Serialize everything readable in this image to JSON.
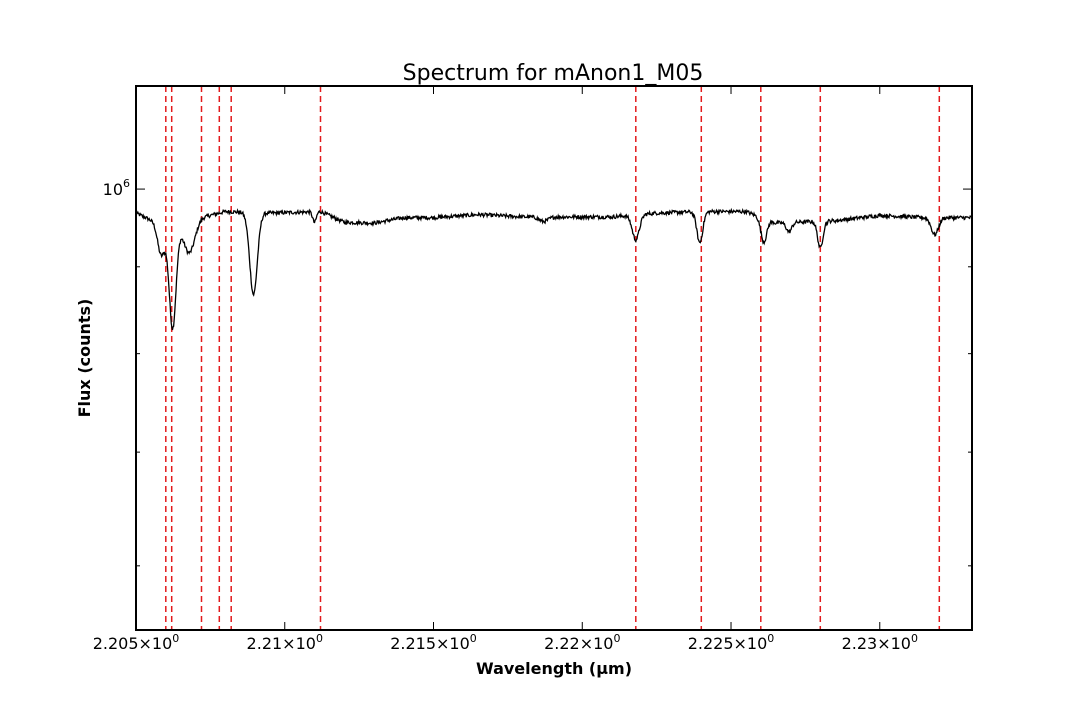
{
  "chart_data": {
    "type": "line",
    "title": "Spectrum for mAnon1_M05",
    "xlabel": "Wavelength (μm)",
    "ylabel": "Flux (counts)",
    "xlim": [
      2.205,
      2.2331
    ],
    "ylim": [
      550000,
      1150000
    ],
    "yscale": "log",
    "grid": false,
    "x_ticks": [
      {
        "value": 2.205,
        "mantissa": "2.205",
        "exp": "0"
      },
      {
        "value": 2.21,
        "mantissa": "2.21",
        "exp": "0"
      },
      {
        "value": 2.215,
        "mantissa": "2.215",
        "exp": "0"
      },
      {
        "value": 2.22,
        "mantissa": "2.22",
        "exp": "0"
      },
      {
        "value": 2.225,
        "mantissa": "2.225",
        "exp": "0"
      },
      {
        "value": 2.23,
        "mantissa": "2.23",
        "exp": "0"
      }
    ],
    "y_ticks": [
      {
        "value": 1000000,
        "base": "10",
        "exp": "6"
      }
    ],
    "y_minor_ticks": [
      600000,
      700000,
      800000,
      900000
    ],
    "reference_lines": {
      "color": "#e31a1c",
      "style": "dashed",
      "x": [
        2.206,
        2.2062,
        2.2072,
        2.2078,
        2.2082,
        2.2112,
        2.2218,
        2.224,
        2.226,
        2.228,
        2.232
      ]
    },
    "series": [
      {
        "color": "#000000",
        "continuum": 965000,
        "continuum_shape": [
          [
            2.205,
            968000
          ],
          [
            2.2057,
            955000
          ],
          [
            2.2066,
            952000
          ],
          [
            2.2072,
            962000
          ],
          [
            2.208,
            970000
          ],
          [
            2.2095,
            968000
          ],
          [
            2.2112,
            970000
          ],
          [
            2.212,
            956000
          ],
          [
            2.213,
            955000
          ],
          [
            2.214,
            962000
          ],
          [
            2.215,
            962000
          ],
          [
            2.2165,
            966000
          ],
          [
            2.218,
            963000
          ],
          [
            2.2195,
            963000
          ],
          [
            2.221,
            963000
          ],
          [
            2.2225,
            968000
          ],
          [
            2.224,
            970000
          ],
          [
            2.2255,
            970000
          ],
          [
            2.2265,
            955000
          ],
          [
            2.2285,
            958000
          ],
          [
            2.23,
            965000
          ],
          [
            2.2315,
            962000
          ],
          [
            2.2331,
            962000
          ]
        ],
        "absorption_features": [
          {
            "center": 2.20585,
            "depth": 40000,
            "width": 0.00012
          },
          {
            "center": 2.20623,
            "depth": 125000,
            "width": 0.00012
          },
          {
            "center": 2.2068,
            "depth": 38000,
            "width": 0.00018
          },
          {
            "center": 2.20895,
            "depth": 102000,
            "width": 0.00013
          },
          {
            "center": 2.211,
            "depth": 14000,
            "width": 6e-05
          },
          {
            "center": 2.2187,
            "depth": 6000,
            "width": 0.00015
          },
          {
            "center": 2.2218,
            "depth": 32000,
            "width": 0.00012
          },
          {
            "center": 2.22395,
            "depth": 40000,
            "width": 0.0001
          },
          {
            "center": 2.2261,
            "depth": 30000,
            "width": 0.0001
          },
          {
            "center": 2.22695,
            "depth": 12000,
            "width": 9e-05
          },
          {
            "center": 2.228,
            "depth": 34000,
            "width": 9e-05
          },
          {
            "center": 2.23185,
            "depth": 22000,
            "width": 0.00012
          }
        ]
      }
    ]
  }
}
